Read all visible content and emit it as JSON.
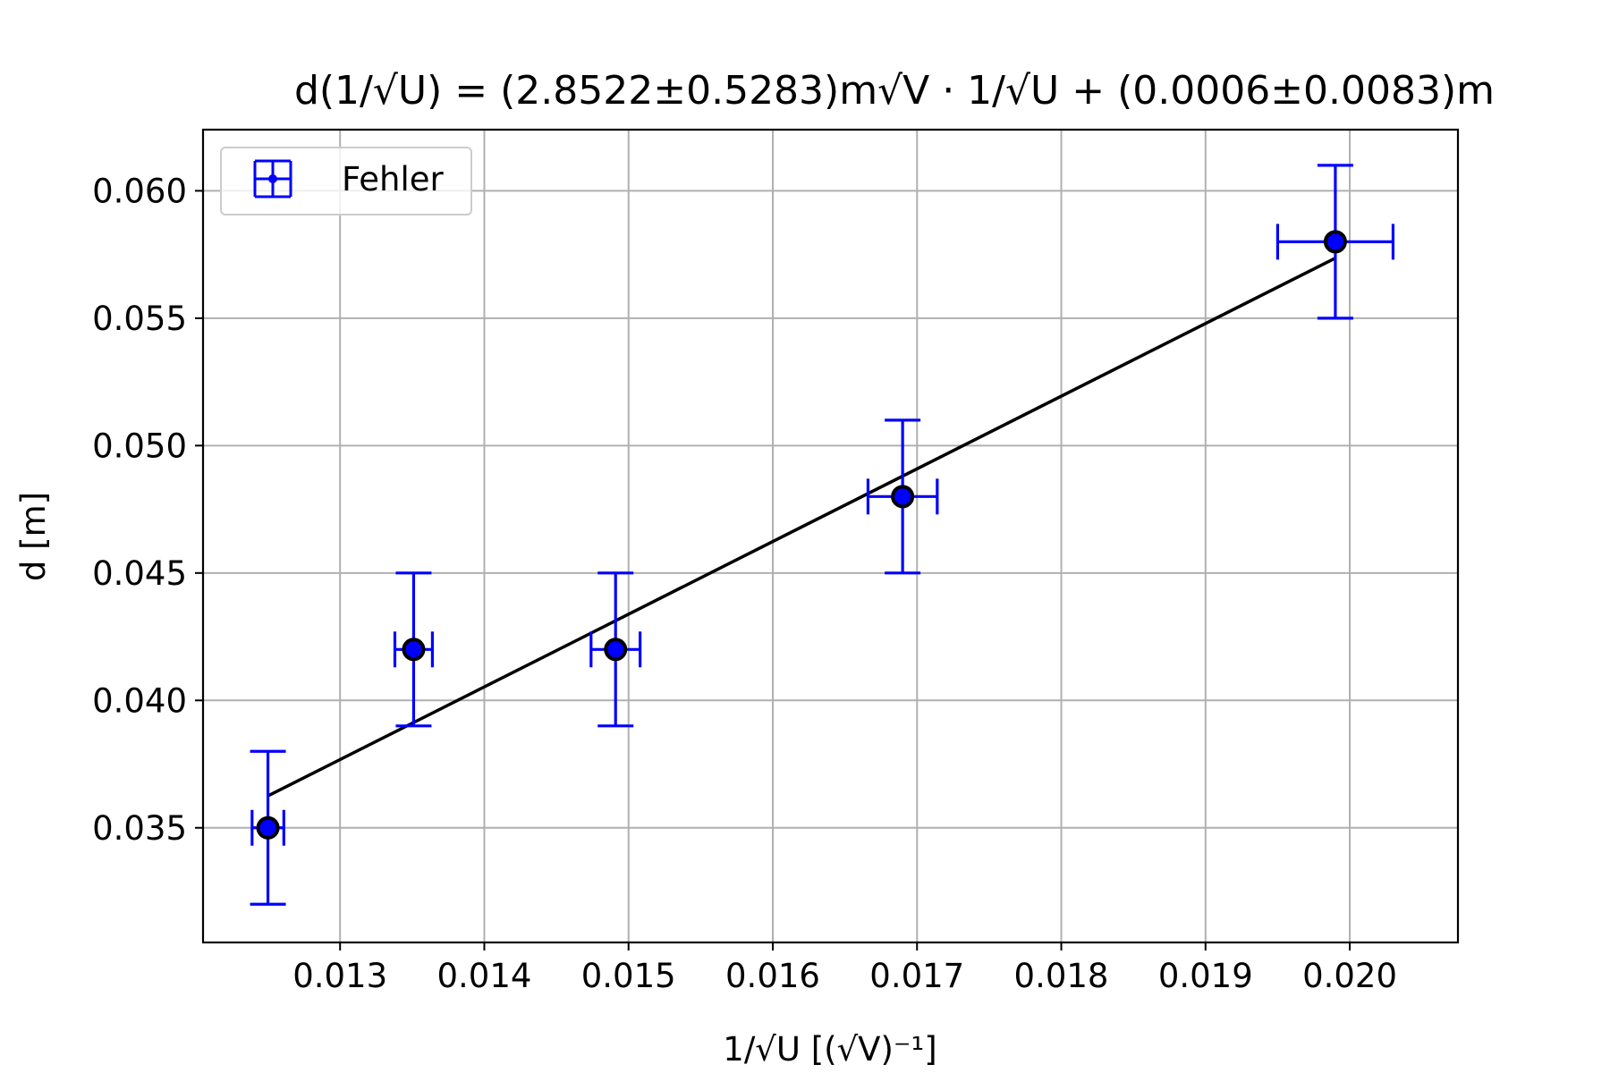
{
  "chart_data": {
    "type": "scatter",
    "title": "d(1/√U) = (2.8522±0.5283)m√V · 1/√U + (0.0006±0.0083)m",
    "xlabel": "1/√U [(√V)⁻¹]",
    "ylabel": "d [m]",
    "xlim": [
      0.01205,
      0.02075
    ],
    "ylim": [
      0.0305,
      0.0624
    ],
    "grid": true,
    "legend_position": "upper-left",
    "x_ticks": [
      0.013,
      0.014,
      0.015,
      0.016,
      0.017,
      0.018,
      0.019,
      0.02
    ],
    "y_ticks": [
      0.035,
      0.04,
      0.045,
      0.05,
      0.055,
      0.06
    ],
    "x_tick_labels": [
      "0.013",
      "0.014",
      "0.015",
      "0.016",
      "0.017",
      "0.018",
      "0.019",
      "0.020"
    ],
    "y_tick_labels": [
      "0.035",
      "0.040",
      "0.045",
      "0.050",
      "0.055",
      "0.060"
    ],
    "series": [
      {
        "name": "Fehler",
        "color": "#0000ff",
        "marker_color": "#000000",
        "x": [
          0.0125,
          0.01351,
          0.01491,
          0.0169,
          0.0199
        ],
        "y": [
          0.035,
          0.042,
          0.042,
          0.048,
          0.058
        ],
        "xerr": [
          0.00011,
          0.00013,
          0.00017,
          0.00024,
          0.0004
        ],
        "yerr": [
          0.003,
          0.003,
          0.003,
          0.003,
          0.003
        ]
      }
    ],
    "fit": {
      "slope": 2.8522,
      "intercept": 0.0006,
      "x_start": 0.0125,
      "x_end": 0.0199,
      "color": "#000000"
    }
  }
}
